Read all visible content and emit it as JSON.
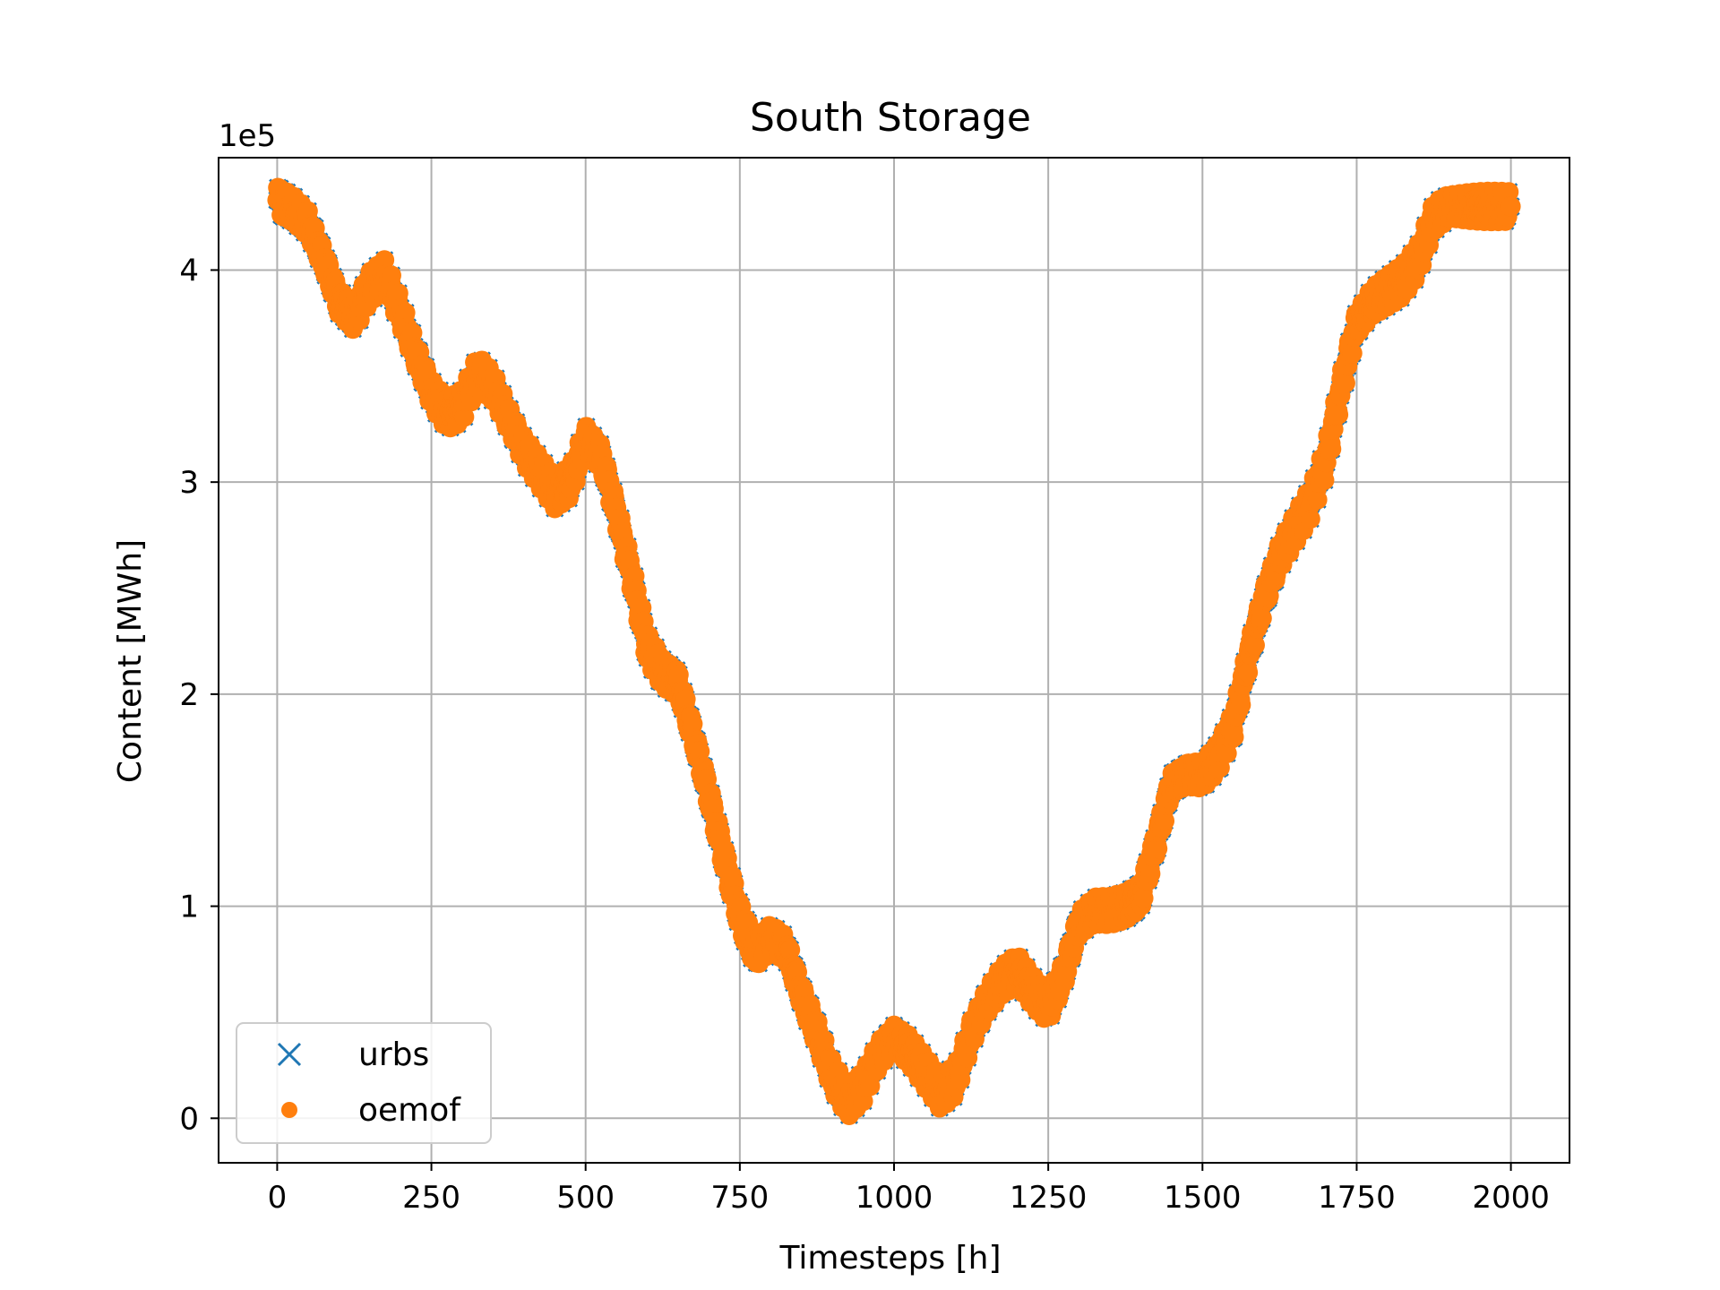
{
  "chart_data": {
    "type": "scatter",
    "title": "South Storage",
    "xlabel": "Timesteps [h]",
    "ylabel": "Content [MWh]",
    "offset_text": "1e5",
    "xlim": [
      -95,
      2095
    ],
    "ylim": [
      -0.21,
      4.53
    ],
    "xticks": [
      0,
      250,
      500,
      750,
      1000,
      1250,
      1500,
      1750,
      2000
    ],
    "xtick_labels": [
      "0",
      "250",
      "500",
      "750",
      "1000",
      "1250",
      "1500",
      "1750",
      "2000"
    ],
    "yticks": [
      0,
      1,
      2,
      3,
      4
    ],
    "ytick_labels": [
      "0",
      "1",
      "2",
      "3",
      "4"
    ],
    "grid": true,
    "legend_position": "lower-left",
    "x": [
      0,
      25,
      50,
      75,
      100,
      125,
      150,
      175,
      200,
      225,
      250,
      275,
      300,
      325,
      350,
      375,
      400,
      425,
      450,
      475,
      500,
      525,
      550,
      575,
      600,
      625,
      650,
      675,
      700,
      725,
      750,
      775,
      800,
      825,
      850,
      875,
      900,
      925,
      950,
      975,
      1000,
      1025,
      1050,
      1075,
      1100,
      1125,
      1150,
      1175,
      1200,
      1225,
      1250,
      1275,
      1300,
      1325,
      1350,
      1375,
      1400,
      1425,
      1450,
      1475,
      1500,
      1525,
      1550,
      1575,
      1600,
      1625,
      1650,
      1675,
      1700,
      1725,
      1750,
      1775,
      1800,
      1825,
      1850,
      1875,
      1900,
      1925,
      1950,
      1975,
      2000
    ],
    "series": [
      {
        "name": "urbs",
        "marker": "x",
        "color": "#1f77b4",
        "values": [
          4.33,
          4.29,
          4.22,
          4.05,
          3.85,
          3.78,
          3.92,
          3.98,
          3.8,
          3.6,
          3.42,
          3.32,
          3.36,
          3.52,
          3.45,
          3.3,
          3.15,
          3.05,
          2.95,
          3.0,
          3.2,
          3.12,
          2.85,
          2.55,
          2.22,
          2.1,
          2.05,
          1.8,
          1.52,
          1.22,
          0.95,
          0.78,
          0.85,
          0.8,
          0.58,
          0.4,
          0.2,
          0.08,
          0.15,
          0.3,
          0.38,
          0.32,
          0.22,
          0.12,
          0.18,
          0.4,
          0.55,
          0.65,
          0.7,
          0.6,
          0.52,
          0.68,
          0.92,
          0.98,
          0.98,
          1.0,
          1.05,
          1.3,
          1.58,
          1.62,
          1.62,
          1.7,
          1.85,
          2.18,
          2.45,
          2.65,
          2.78,
          2.9,
          3.1,
          3.45,
          3.75,
          3.85,
          3.9,
          3.95,
          4.05,
          4.25,
          4.3,
          4.3,
          4.3,
          4.3,
          4.3
        ]
      },
      {
        "name": "oemof",
        "marker": "o",
        "color": "#ff7f0e",
        "values": [
          4.33,
          4.29,
          4.22,
          4.05,
          3.85,
          3.78,
          3.92,
          3.98,
          3.8,
          3.6,
          3.42,
          3.32,
          3.36,
          3.52,
          3.45,
          3.3,
          3.15,
          3.05,
          2.95,
          3.0,
          3.2,
          3.12,
          2.85,
          2.55,
          2.22,
          2.1,
          2.05,
          1.8,
          1.52,
          1.22,
          0.95,
          0.78,
          0.85,
          0.8,
          0.58,
          0.4,
          0.2,
          0.08,
          0.15,
          0.3,
          0.38,
          0.32,
          0.22,
          0.12,
          0.18,
          0.4,
          0.55,
          0.65,
          0.7,
          0.6,
          0.52,
          0.68,
          0.92,
          0.98,
          0.98,
          1.0,
          1.05,
          1.3,
          1.58,
          1.62,
          1.62,
          1.7,
          1.85,
          2.18,
          2.45,
          2.65,
          2.78,
          2.9,
          3.1,
          3.45,
          3.75,
          3.85,
          3.9,
          3.95,
          4.05,
          4.25,
          4.3,
          4.3,
          4.3,
          4.3,
          4.3
        ]
      }
    ]
  }
}
